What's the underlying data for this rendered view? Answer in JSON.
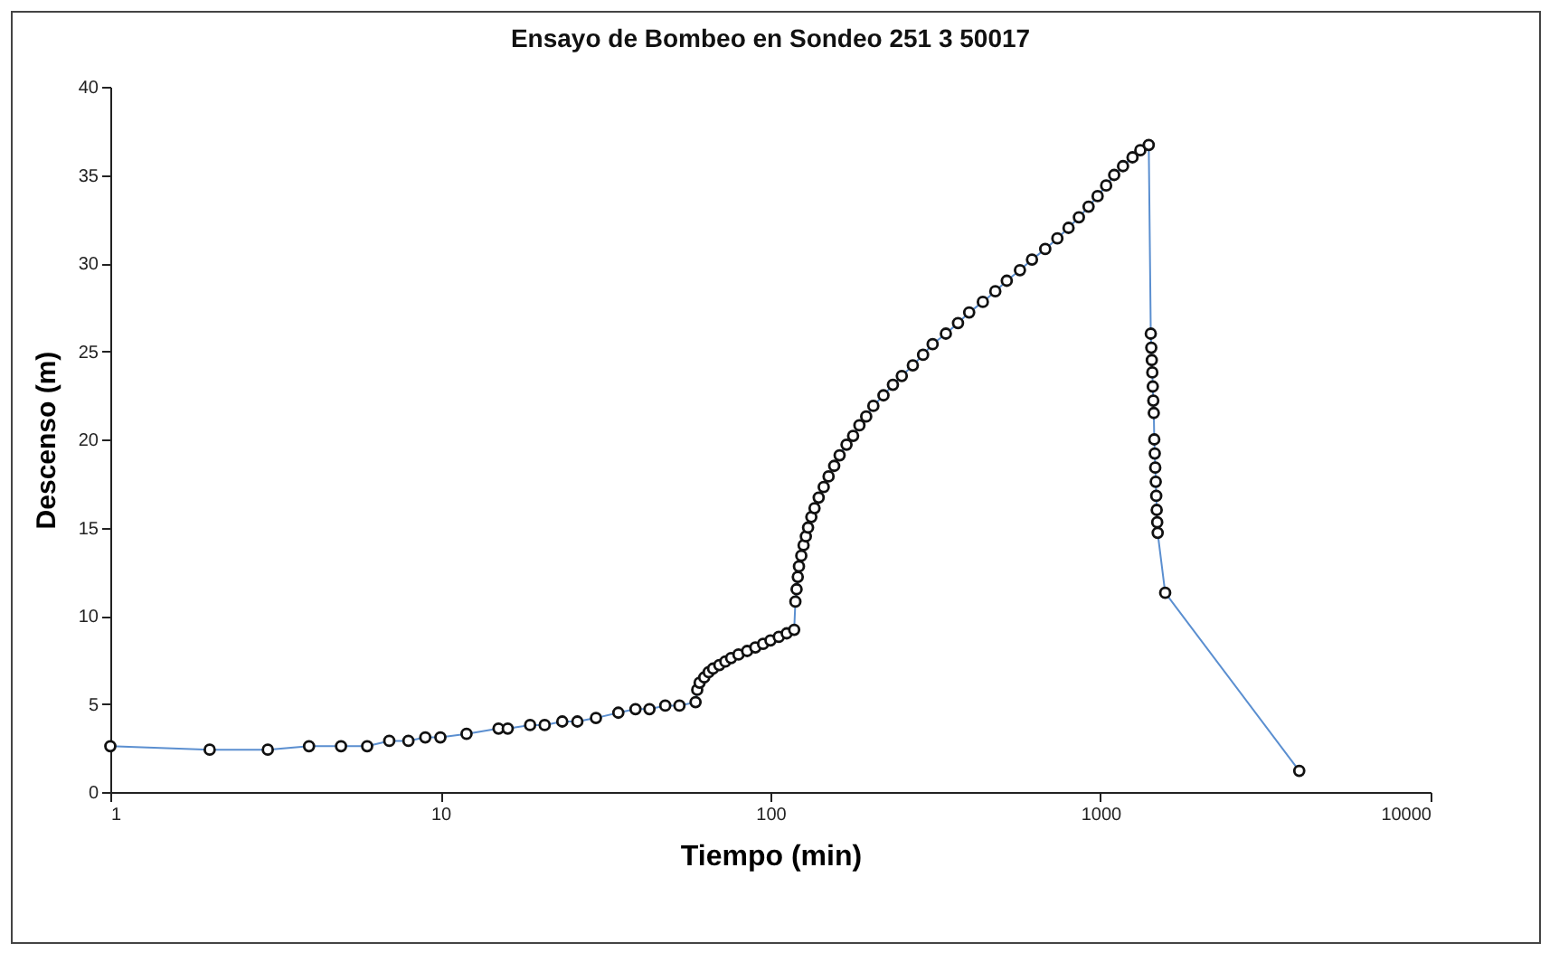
{
  "chart_data": {
    "type": "line",
    "title": "Ensayo de Bombeo en Sondeo 251 3 50017",
    "xlabel": "Tiempo (min)",
    "ylabel": "Descenso (m)",
    "log": "x",
    "xlim": [
      1,
      10000
    ],
    "xticks": [
      1,
      10,
      100,
      1000,
      10000
    ],
    "ylim": [
      0,
      40
    ],
    "yticks": [
      0,
      5,
      10,
      15,
      20,
      25,
      30,
      35,
      40
    ],
    "grid": false,
    "marker": "circle",
    "line_style": "solid",
    "series": [
      {
        "color": "#5b8fd0",
        "x": [
          1,
          2,
          3,
          4,
          5,
          6,
          7,
          8,
          9,
          10,
          12,
          15,
          16,
          18.7,
          20.7,
          23.4,
          26,
          29.6,
          34.6,
          39,
          43,
          48,
          53,
          59.3,
          60,
          61,
          63,
          65,
          67,
          70,
          73,
          76,
          80,
          85,
          90,
          95,
          100,
          106,
          112,
          118,
          119,
          120,
          121,
          122,
          124,
          126,
          128,
          130,
          133,
          136,
          140,
          145,
          150,
          156,
          162,
          170,
          178,
          186,
          195,
          205,
          220,
          235,
          250,
          270,
          290,
          310,
          340,
          370,
          400,
          440,
          480,
          520,
          570,
          620,
          680,
          740,
          800,
          860,
          920,
          980,
          1040,
          1100,
          1170,
          1250,
          1320,
          1400,
          1420,
          1425,
          1430,
          1435,
          1440,
          1445,
          1450,
          1455,
          1460,
          1465,
          1470,
          1475,
          1480,
          1485,
          1490,
          1570,
          4000
        ],
        "values": [
          2.6,
          2.4,
          2.4,
          2.6,
          2.6,
          2.6,
          2.9,
          2.9,
          3.1,
          3.1,
          3.3,
          3.6,
          3.6,
          3.8,
          3.8,
          4.0,
          4.0,
          4.2,
          4.5,
          4.7,
          4.7,
          4.9,
          4.9,
          5.1,
          5.8,
          6.2,
          6.5,
          6.8,
          7.0,
          7.2,
          7.4,
          7.6,
          7.8,
          8.0,
          8.2,
          8.4,
          8.6,
          8.8,
          9.0,
          9.2,
          10.8,
          11.5,
          12.2,
          12.8,
          13.4,
          14.0,
          14.5,
          15.0,
          15.6,
          16.1,
          16.7,
          17.3,
          17.9,
          18.5,
          19.1,
          19.7,
          20.2,
          20.8,
          21.3,
          21.9,
          22.5,
          23.1,
          23.6,
          24.2,
          24.8,
          25.4,
          26.0,
          26.6,
          27.2,
          27.8,
          28.4,
          29.0,
          29.6,
          30.2,
          30.8,
          31.4,
          32.0,
          32.6,
          33.2,
          33.8,
          34.4,
          35.0,
          35.5,
          36.0,
          36.4,
          36.7,
          26.0,
          25.2,
          24.5,
          23.8,
          23.0,
          22.2,
          21.5,
          20.0,
          19.2,
          18.4,
          17.6,
          16.8,
          16.0,
          15.3,
          14.7,
          11.3,
          1.2
        ]
      }
    ]
  }
}
